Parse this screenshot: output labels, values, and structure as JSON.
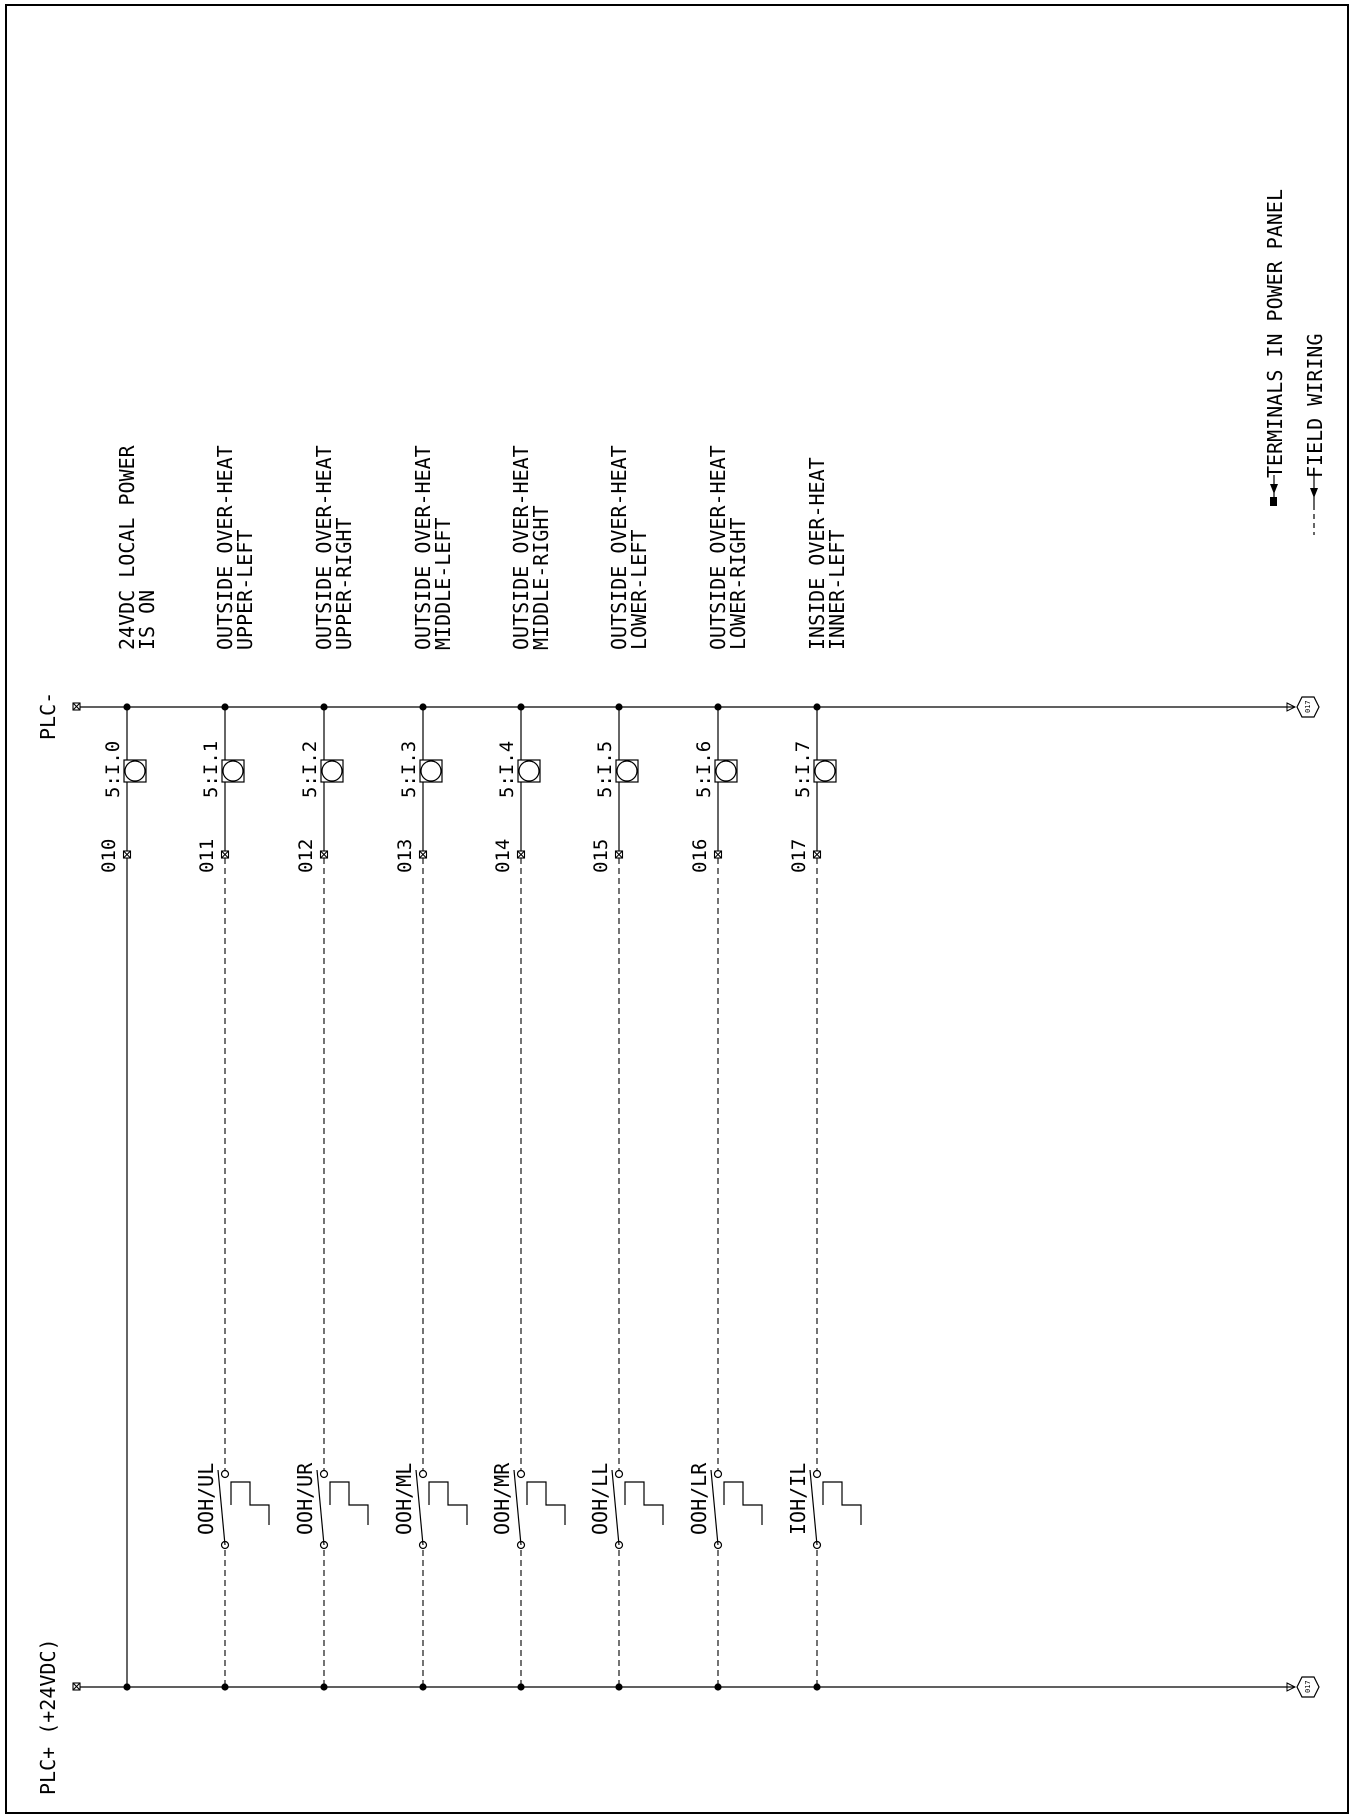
{
  "rails": {
    "negative_label": "PLC-",
    "positive_label": "PLC+ (+24VDC)",
    "offpage_ref": "017"
  },
  "rungs": [
    {
      "line": "010",
      "address": "5:I.0",
      "desc1": "24VDC LOCAL POWER",
      "desc2": "IS ON",
      "switch": null
    },
    {
      "line": "011",
      "address": "5:I.1",
      "desc1": "OUTSIDE OVER-HEAT",
      "desc2": "UPPER-LEFT",
      "switch": "OOH/UL"
    },
    {
      "line": "012",
      "address": "5:I.2",
      "desc1": "OUTSIDE OVER-HEAT",
      "desc2": "UPPER-RIGHT",
      "switch": "OOH/UR"
    },
    {
      "line": "013",
      "address": "5:I.3",
      "desc1": "OUTSIDE OVER-HEAT",
      "desc2": "MIDDLE-LEFT",
      "switch": "OOH/ML"
    },
    {
      "line": "014",
      "address": "5:I.4",
      "desc1": "OUTSIDE OVER-HEAT",
      "desc2": "MIDDLE-RIGHT",
      "switch": "OOH/MR"
    },
    {
      "line": "015",
      "address": "5:I.5",
      "desc1": "OUTSIDE OVER-HEAT",
      "desc2": "LOWER-LEFT",
      "switch": "OOH/LL"
    },
    {
      "line": "016",
      "address": "5:I.6",
      "desc1": "OUTSIDE OVER-HEAT",
      "desc2": "LOWER-RIGHT",
      "switch": "OOH/LR"
    },
    {
      "line": "017",
      "address": "5:I.7",
      "desc1": "INSIDE OVER-HEAT",
      "desc2": "INNER-LEFT",
      "switch": "IOH/IL"
    }
  ],
  "legend": {
    "terminals": "TERMINALS IN POWER PANEL",
    "field_wiring": "FIELD WIRING"
  }
}
